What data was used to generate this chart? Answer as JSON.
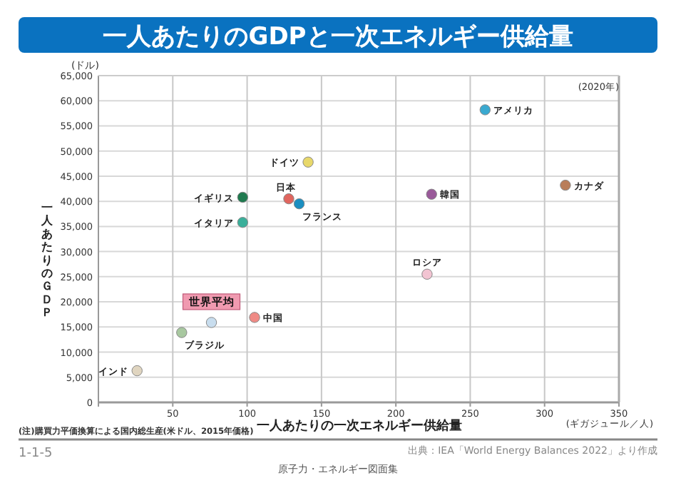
{
  "chart_data": {
    "type": "scatter",
    "title": "一人あたりのGDPと一次エネルギー供給量",
    "xlabel": "一人あたりの一次エネルギー供給量",
    "ylabel": "一人あたりのＧＤＰ",
    "series": [
      {
        "name": "アメリカ",
        "color": "#3aa9d0",
        "x": [
          260
        ],
        "values": [
          58200
        ]
      },
      {
        "name": "ドイツ",
        "color": "#e8d86a",
        "x": [
          141
        ],
        "values": [
          47800
        ]
      },
      {
        "name": "イギリス",
        "color": "#1f7a4f",
        "x": [
          97
        ],
        "values": [
          40800
        ]
      },
      {
        "name": "日本",
        "color": "#e0655e",
        "x": [
          128
        ],
        "values": [
          40500
        ]
      },
      {
        "name": "フランス",
        "color": "#1b8ec0",
        "x": [
          135
        ],
        "values": [
          39500
        ]
      },
      {
        "name": "イタリア",
        "color": "#3aaf9a",
        "x": [
          97
        ],
        "values": [
          35800
        ]
      },
      {
        "name": "韓国",
        "color": "#9a5a9a",
        "x": [
          224
        ],
        "values": [
          41400
        ]
      },
      {
        "name": "カナダ",
        "color": "#b97e5a",
        "x": [
          314
        ],
        "values": [
          43200
        ]
      },
      {
        "name": "ロシア",
        "color": "#f2c4d2",
        "x": [
          221
        ],
        "values": [
          25500
        ]
      },
      {
        "name": "中国",
        "color": "#ef8a85",
        "x": [
          105
        ],
        "values": [
          16900
        ]
      },
      {
        "name": "世界平均",
        "color": "#c8ddee",
        "x": [
          76
        ],
        "values": [
          15900
        ]
      },
      {
        "name": "ブラジル",
        "color": "#a8c8a0",
        "x": [
          56
        ],
        "values": [
          13900
        ]
      },
      {
        "name": "インド",
        "color": "#e0d5c0",
        "x": [
          26
        ],
        "values": [
          6300
        ]
      }
    ],
    "xlim": [
      0,
      350
    ],
    "xticks": [
      {
        "value": 0,
        "label": null
      },
      50,
      100,
      150,
      200,
      250,
      300,
      350
    ],
    "ylim": [
      0,
      65000
    ],
    "yticks": [
      {
        "value": 0,
        "label": "0"
      },
      {
        "value": 5000,
        "label": "5,000"
      },
      {
        "value": 10000,
        "label": "10,000"
      },
      {
        "value": 15000,
        "label": "15,000"
      },
      {
        "value": 20000,
        "label": "20,000"
      },
      {
        "value": 25000,
        "label": "25,000"
      },
      {
        "value": 30000,
        "label": "30,000"
      },
      {
        "value": 35000,
        "label": "35,000"
      },
      {
        "value": 40000,
        "label": "40,000"
      },
      {
        "value": 45000,
        "label": "45,000"
      },
      {
        "value": 50000,
        "label": "50,000"
      },
      {
        "value": 55000,
        "label": "55,000"
      },
      {
        "value": 60000,
        "label": "60,000"
      },
      {
        "value": 65000,
        "label": "65,000"
      }
    ],
    "grid": true,
    "legend": false,
    "marker": "circle",
    "annotations": [
      "(ドル)",
      "(2020年)",
      "(ギガジュール／人)",
      "(注)購買力平価換算による国内総生産(米ドル、2015年価格)",
      "1-1-5",
      "出典：IEA「World Energy Balances 2022」より作成",
      "原子力・エネルギー図面集"
    ]
  }
}
